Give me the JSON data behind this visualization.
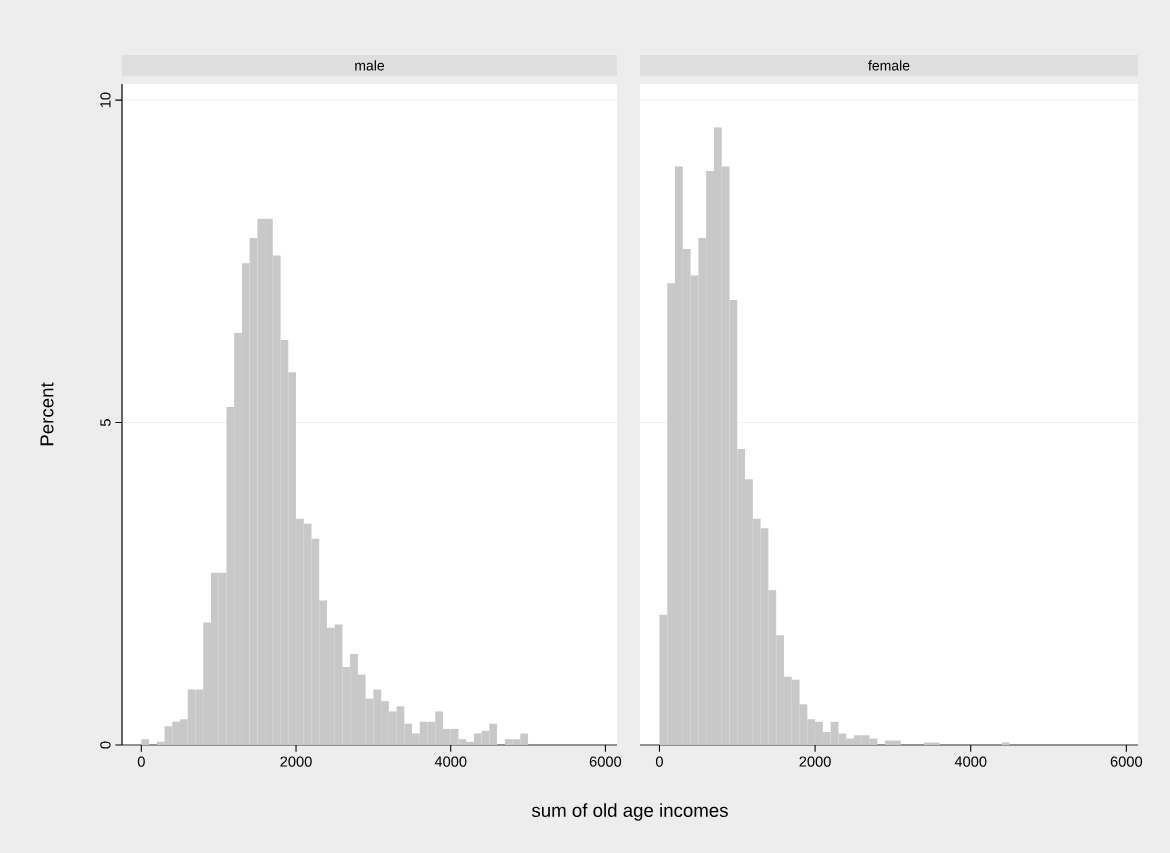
{
  "chart_data": [
    {
      "type": "histogram",
      "title": "male",
      "xlabel": "sum of old age incomes",
      "ylabel": "Percent",
      "color": "#c8c8c8",
      "grid": "y",
      "bins": [
        0,
        100,
        200,
        300,
        400,
        500,
        600,
        700,
        800,
        900,
        1000,
        1100,
        1200,
        1300,
        1400,
        1500,
        1600,
        1700,
        1800,
        1900,
        2000,
        2100,
        2200,
        2300,
        2400,
        2500,
        2600,
        2700,
        2800,
        2900,
        3000,
        3100,
        3200,
        3300,
        3400,
        3500,
        3600,
        3700,
        3800,
        3900,
        4000,
        4100,
        4200,
        4300,
        4400,
        4500,
        4600,
        4700,
        4800,
        4900,
        5000
      ],
      "values": [
        0.09,
        0,
        0.05,
        0.29,
        0.36,
        0.4,
        0.86,
        0.86,
        1.9,
        2.67,
        2.67,
        5.24,
        6.39,
        7.47,
        7.86,
        8.16,
        8.16,
        7.59,
        6.28,
        5.78,
        3.51,
        3.43,
        3.2,
        2.24,
        1.82,
        1.87,
        1.21,
        1.41,
        1.09,
        0.72,
        0.86,
        0.68,
        0.52,
        0.6,
        0.33,
        0.18,
        0.36,
        0.36,
        0.52,
        0.25,
        0.25,
        0.09,
        0.05,
        0.18,
        0.22,
        0.33,
        0,
        0.09,
        0.09,
        0.18
      ],
      "xlim": [
        -250,
        6150
      ],
      "ylim": [
        0,
        10.25
      ],
      "xticks": [
        0,
        2000,
        4000,
        6000
      ],
      "yticks": [
        0,
        5,
        10
      ]
    },
    {
      "type": "histogram",
      "title": "female",
      "color": "#c8c8c8",
      "grid": "y",
      "tick_labels": "x",
      "bins": [
        0,
        100,
        200,
        300,
        400,
        500,
        600,
        700,
        800,
        900,
        1000,
        1100,
        1200,
        1300,
        1400,
        1500,
        1600,
        1700,
        1800,
        1900,
        2000,
        2100,
        2200,
        2300,
        2400,
        2500,
        2600,
        2700,
        2800,
        2900,
        3000,
        3100,
        3200,
        3300,
        3400,
        3500,
        3600,
        3700,
        3800,
        3900,
        4000,
        4100,
        4200,
        4300,
        4400,
        4500
      ],
      "values": [
        2.02,
        7.16,
        8.97,
        7.69,
        7.28,
        7.86,
        8.9,
        9.58,
        8.97,
        6.9,
        4.59,
        4.12,
        3.51,
        3.36,
        2.4,
        1.7,
        1.06,
        1.01,
        0.63,
        0.4,
        0.36,
        0.2,
        0.36,
        0.18,
        0.1,
        0.15,
        0.15,
        0.1,
        0,
        0.07,
        0.07,
        0,
        0,
        0,
        0.04,
        0.04,
        0,
        0,
        0,
        0,
        0,
        0,
        0,
        0,
        0.04
      ],
      "xlim": [
        -250,
        6150
      ],
      "ylim": [
        0,
        10.25
      ],
      "xticks": [
        0,
        2000,
        4000,
        6000
      ],
      "yticks": [
        0,
        5,
        10
      ]
    }
  ]
}
